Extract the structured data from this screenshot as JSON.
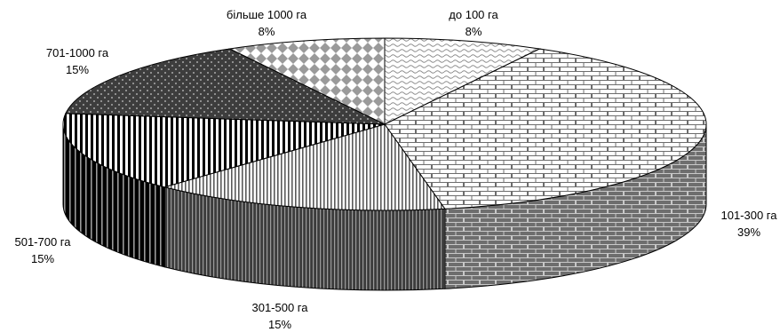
{
  "chart_data": {
    "type": "pie",
    "style": "3d",
    "title": "",
    "slices": [
      {
        "label": "до 100 га",
        "value": 8,
        "value_label": "8%",
        "pattern": "wave"
      },
      {
        "label": "101-300 га",
        "value": 39,
        "value_label": "39%",
        "pattern": "brick"
      },
      {
        "label": "301-500 га",
        "value": 15,
        "value_label": "15%",
        "pattern": "vertical-lines"
      },
      {
        "label": "501-700 га",
        "value": 15,
        "value_label": "15%",
        "pattern": "bold-vertical-lines"
      },
      {
        "label": "701-1000 га",
        "value": 15,
        "value_label": "15%",
        "pattern": "dots"
      },
      {
        "label": "більше 1000 га",
        "value": 8,
        "value_label": "8%",
        "pattern": "diamonds"
      }
    ],
    "legend": "none",
    "colors": {
      "outline": "#000000",
      "background": "#ffffff"
    }
  }
}
